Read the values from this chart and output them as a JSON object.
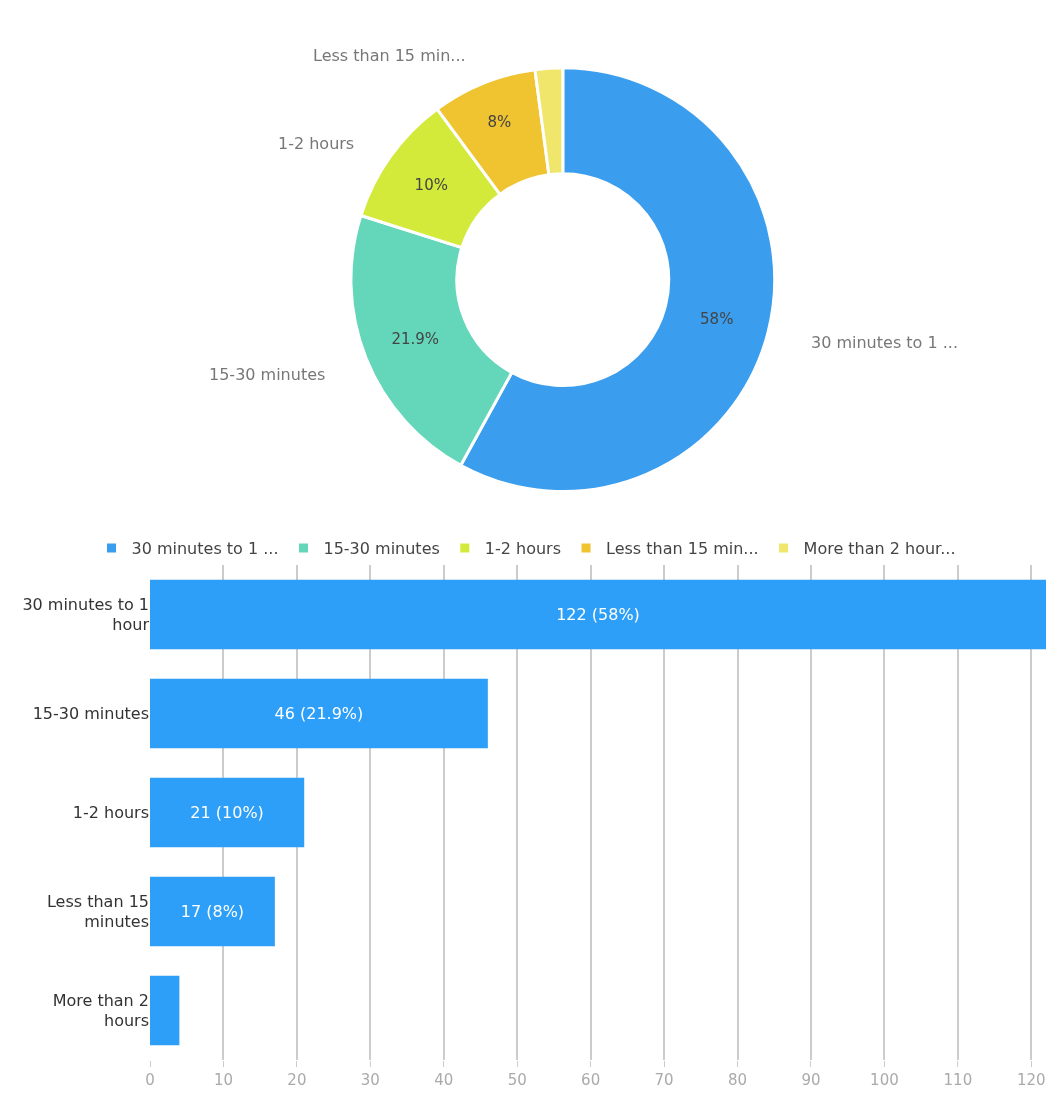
{
  "chart_data": [
    {
      "type": "donut",
      "categories": [
        "30 minutes to 1 ...",
        "15-30 minutes",
        "1-2 hours",
        "Less than 15 min...",
        "More than 2 hour..."
      ],
      "values": [
        58,
        21.9,
        10,
        8,
        2.1
      ],
      "colors": [
        "#3b9ded",
        "#64d6b9",
        "#d4ea3a",
        "#f0c330",
        "#efe66b"
      ],
      "value_labels": [
        "58%",
        "21.9%",
        "10%",
        "8%",
        null
      ],
      "legend": "bottom"
    },
    {
      "type": "bar",
      "orientation": "horizontal",
      "categories": [
        "30 minutes to 1 hour",
        "15-30 minutes",
        "1-2 hours",
        "Less than 15 minutes",
        "More than 2 hours"
      ],
      "values": [
        122,
        46,
        21,
        17,
        4
      ],
      "color": "#2d9ff8",
      "value_labels": [
        "122 (58%)",
        "46 (21.9%)",
        "21 (10%)",
        "17 (8%)",
        null
      ],
      "xlim": [
        0,
        122
      ],
      "xticks": [
        0,
        10,
        20,
        30,
        40,
        50,
        60,
        70,
        80,
        90,
        100,
        110,
        120
      ],
      "grid": "x"
    }
  ]
}
